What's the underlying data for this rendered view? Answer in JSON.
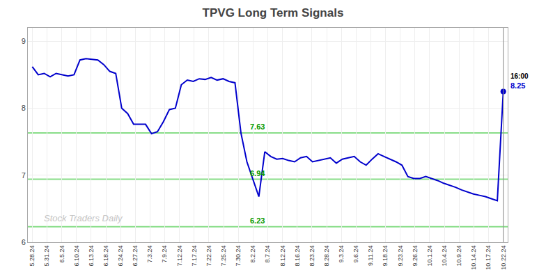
{
  "chart_data": {
    "type": "line",
    "title": "TPVG Long Term Signals",
    "color": "#0000cc",
    "values": [
      8.62,
      8.5,
      8.52,
      8.47,
      8.52,
      8.5,
      8.48,
      8.5,
      8.72,
      8.74,
      8.73,
      8.72,
      8.65,
      8.55,
      8.52,
      8.0,
      7.92,
      7.76,
      7.76,
      7.76,
      7.62,
      7.65,
      7.8,
      7.98,
      8.0,
      8.35,
      8.42,
      8.4,
      8.44,
      8.43,
      8.46,
      8.42,
      8.44,
      8.4,
      8.38,
      7.63,
      7.2,
      6.94,
      6.68,
      7.35,
      7.28,
      7.24,
      7.25,
      7.22,
      7.2,
      7.26,
      7.28,
      7.2,
      7.22,
      7.24,
      7.26,
      7.18,
      7.24,
      7.26,
      7.28,
      7.2,
      7.15,
      7.24,
      7.32,
      7.28,
      7.24,
      7.2,
      7.15,
      6.98,
      6.95,
      6.95,
      6.98,
      6.95,
      6.92,
      6.88,
      6.85,
      6.82,
      6.78,
      6.75,
      6.72,
      6.7,
      6.68,
      6.65,
      6.62,
      8.25
    ],
    "xlim": [
      -0.740625,
      79.740625
    ],
    "xticks": [
      {
        "value": 0,
        "label": "5.28.24"
      },
      {
        "value": 2.46875,
        "label": "5.31.24"
      },
      {
        "value": 4.9375,
        "label": "6.5.24"
      },
      {
        "value": 7.40625,
        "label": "6.10.24"
      },
      {
        "value": 9.875,
        "label": "6.13.24"
      },
      {
        "value": 12.34375,
        "label": "6.18.24"
      },
      {
        "value": 14.8125,
        "label": "6.24.24"
      },
      {
        "value": 17.28125,
        "label": "6.27.24"
      },
      {
        "value": 19.75,
        "label": "7.3.24"
      },
      {
        "value": 22.21875,
        "label": "7.9.24"
      },
      {
        "value": 24.6875,
        "label": "7.12.24"
      },
      {
        "value": 27.15625,
        "label": "7.17.24"
      },
      {
        "value": 29.625,
        "label": "7.22.24"
      },
      {
        "value": 32.09375,
        "label": "7.25.24"
      },
      {
        "value": 34.5625,
        "label": "7.30.24"
      },
      {
        "value": 37.03125,
        "label": "8.2.24"
      },
      {
        "value": 39.5,
        "label": "8.7.24"
      },
      {
        "value": 41.96875,
        "label": "8.12.24"
      },
      {
        "value": 44.4375,
        "label": "8.16.24"
      },
      {
        "value": 46.90625,
        "label": "8.23.24"
      },
      {
        "value": 49.375,
        "label": "8.28.24"
      },
      {
        "value": 51.84375,
        "label": "9.3.24"
      },
      {
        "value": 54.3125,
        "label": "9.6.24"
      },
      {
        "value": 56.78125,
        "label": "9.11.24"
      },
      {
        "value": 59.25,
        "label": "9.18.24"
      },
      {
        "value": 61.71875,
        "label": "9.23.24"
      },
      {
        "value": 64.1875,
        "label": "9.26.24"
      },
      {
        "value": 66.65625,
        "label": "10.1.24"
      },
      {
        "value": 69.125,
        "label": "10.4.24"
      },
      {
        "value": 71.59375,
        "label": "10.9.24"
      },
      {
        "value": 74.0625,
        "label": "10.14.24"
      },
      {
        "value": 76.53125,
        "label": "10.17.24"
      },
      {
        "value": 79,
        "label": "10.22.24"
      }
    ],
    "ylim": [
      6.0,
      9.2
    ],
    "yticks": [
      6,
      7,
      8,
      9
    ],
    "grid": true,
    "hlines": [
      {
        "value": 7.63,
        "label": "7.63",
        "color": "#88dd88",
        "label_color": "#009900"
      },
      {
        "value": 6.94,
        "label": "6.94",
        "color": "#88dd88",
        "label_color": "#009900"
      },
      {
        "value": 6.23,
        "label": "6.23",
        "color": "#88dd88",
        "label_color": "#009900"
      }
    ],
    "vline": {
      "value": 79,
      "color": "#888888"
    },
    "last_point": {
      "value": 8.25,
      "color": "#0000cc"
    },
    "annotations": [
      {
        "text": "16:00",
        "color": "#000000"
      },
      {
        "text": "8.25",
        "color": "#0000cc"
      }
    ],
    "watermark": {
      "text": "Stock Traders Daily",
      "color": "#bbbbbb"
    }
  }
}
